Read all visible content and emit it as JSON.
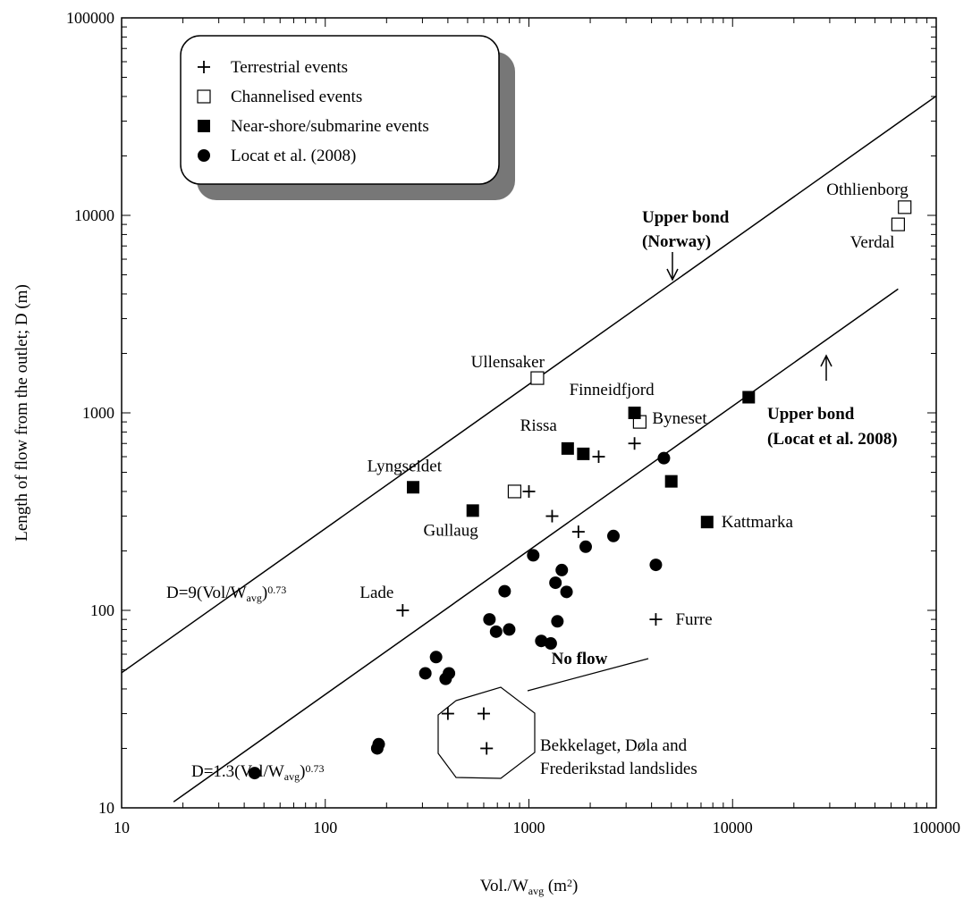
{
  "chart_data": {
    "type": "scatter",
    "x_scale": "log",
    "y_scale": "log",
    "xlim": [
      10,
      100000
    ],
    "ylim": [
      10,
      100000
    ],
    "x_ticks": [
      "10",
      "100",
      "1000",
      "10000",
      "100000"
    ],
    "y_ticks": [
      "10",
      "100",
      "1000",
      "10000",
      "100000"
    ],
    "xlabel": {
      "main": "Vol./W",
      "sub": "avg",
      "tail": " (m",
      "sup": "2",
      "end": ")"
    },
    "ylabel": "Length of flow from the outlet; D (m)",
    "grid": false,
    "legend_position": "top-left",
    "legend": [
      {
        "marker": "plus",
        "label": "Terrestrial events"
      },
      {
        "marker": "open-square",
        "label": "Channelised events"
      },
      {
        "marker": "filled-square",
        "label": "Near-shore/submarine events"
      },
      {
        "marker": "filled-circle",
        "label": "Locat et al. (2008)"
      }
    ],
    "series": [
      {
        "name": "Terrestrial events",
        "marker": "plus",
        "points": [
          {
            "x": 240,
            "y": 100,
            "label": "Lade"
          },
          {
            "x": 1000,
            "y": 400
          },
          {
            "x": 1300,
            "y": 300
          },
          {
            "x": 1750,
            "y": 250
          },
          {
            "x": 2200,
            "y": 600
          },
          {
            "x": 3300,
            "y": 700
          },
          {
            "x": 4200,
            "y": 90,
            "label": "Furre"
          },
          {
            "x": 400,
            "y": 30
          },
          {
            "x": 600,
            "y": 30
          },
          {
            "x": 620,
            "y": 20
          }
        ]
      },
      {
        "name": "Channelised events",
        "marker": "open-square",
        "points": [
          {
            "x": 1100,
            "y": 1500,
            "label": "Ullensaker"
          },
          {
            "x": 850,
            "y": 400
          },
          {
            "x": 3500,
            "y": 900,
            "label": "Byneset"
          },
          {
            "x": 65000,
            "y": 9000,
            "label": "Verdal"
          },
          {
            "x": 70000,
            "y": 11000,
            "label": "Othlienborg"
          }
        ]
      },
      {
        "name": "Near-shore/submarine events",
        "marker": "filled-square",
        "points": [
          {
            "x": 270,
            "y": 420,
            "label": "Lyngseidet"
          },
          {
            "x": 530,
            "y": 320,
            "label": "Gullaug"
          },
          {
            "x": 1550,
            "y": 660,
            "label": "Rissa"
          },
          {
            "x": 1850,
            "y": 620
          },
          {
            "x": 3300,
            "y": 1000,
            "label": "Finneidfjord"
          },
          {
            "x": 5000,
            "y": 450
          },
          {
            "x": 7500,
            "y": 280,
            "label": "Kattmarka"
          },
          {
            "x": 12000,
            "y": 1200
          }
        ]
      },
      {
        "name": "Locat et al. (2008)",
        "marker": "filled-circle",
        "points": [
          {
            "x": 45,
            "y": 15
          },
          {
            "x": 180,
            "y": 20
          },
          {
            "x": 183,
            "y": 21
          },
          {
            "x": 310,
            "y": 48
          },
          {
            "x": 350,
            "y": 58
          },
          {
            "x": 390,
            "y": 45
          },
          {
            "x": 405,
            "y": 48
          },
          {
            "x": 640,
            "y": 90
          },
          {
            "x": 690,
            "y": 78
          },
          {
            "x": 760,
            "y": 125
          },
          {
            "x": 800,
            "y": 80
          },
          {
            "x": 1050,
            "y": 190
          },
          {
            "x": 1150,
            "y": 70
          },
          {
            "x": 1280,
            "y": 68
          },
          {
            "x": 1350,
            "y": 138
          },
          {
            "x": 1380,
            "y": 88
          },
          {
            "x": 1450,
            "y": 160
          },
          {
            "x": 1530,
            "y": 124
          },
          {
            "x": 1900,
            "y": 210
          },
          {
            "x": 2600,
            "y": 238
          },
          {
            "x": 4200,
            "y": 170
          },
          {
            "x": 4600,
            "y": 590
          }
        ]
      }
    ],
    "lines": [
      {
        "equation": {
          "main": "D=9(Vol/W",
          "sub": "avg",
          "tail": ")",
          "sup": "0.73"
        },
        "coef": 9,
        "exponent": 0.73,
        "x_range": [
          10,
          100000
        ],
        "annotation": [
          "Upper bond",
          "(Norway)"
        ]
      },
      {
        "equation": {
          "main": "D=1.3(Vol/W",
          "sub": "avg",
          "tail": ")",
          "sup": "0.73"
        },
        "coef": 1.3,
        "exponent": 0.73,
        "x_range": [
          18,
          65000
        ],
        "annotation": [
          "Upper bond",
          "(Locat et al. 2008)"
        ]
      }
    ],
    "annotations": {
      "no_flow": "No flow",
      "cluster_label": [
        "Bekkelaget, Døla and",
        "Frederikstad landslides"
      ]
    }
  }
}
